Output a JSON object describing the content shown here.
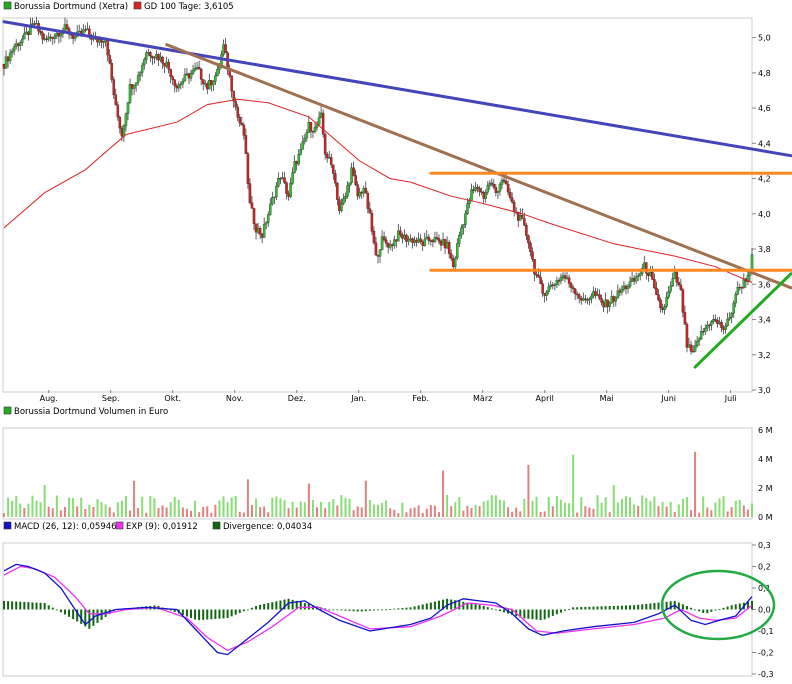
{
  "chart_data": [
    {
      "type": "candlestick",
      "panel": "price",
      "legend": [
        {
          "label": "Borussia Dortmund (Xetra)",
          "color": "#22aa22"
        },
        {
          "label": "GD 100 Tage: 3,6105",
          "color": "#dd2222"
        }
      ],
      "month_labels": [
        "Aug.",
        "Sep.",
        "Okt.",
        "Nov.",
        "Dez.",
        "Jan.",
        "Feb.",
        "März",
        "April",
        "Mai",
        "Juni",
        "Juli"
      ],
      "ylim": [
        3.0,
        5.1
      ],
      "yticks": [
        {
          "v": 3.0,
          "t": "3,0"
        },
        {
          "v": 3.2,
          "t": "3,2"
        },
        {
          "v": 3.4,
          "t": "3,4"
        },
        {
          "v": 3.6,
          "t": "3,6"
        },
        {
          "v": 3.8,
          "t": "3,8"
        },
        {
          "v": 4.0,
          "t": "4,0"
        },
        {
          "v": 4.2,
          "t": "4,2"
        },
        {
          "v": 4.4,
          "t": "4,4"
        },
        {
          "v": 4.6,
          "t": "4,6"
        },
        {
          "v": 4.8,
          "t": "4,8"
        },
        {
          "v": 5.0,
          "t": "5,0"
        }
      ],
      "close_path": [
        [
          0,
          4.85
        ],
        [
          5,
          4.95
        ],
        [
          10,
          5.0
        ],
        [
          15,
          5.08
        ],
        [
          20,
          4.98
        ],
        [
          25,
          5.02
        ],
        [
          30,
          5.05
        ],
        [
          35,
          5.0
        ],
        [
          40,
          5.04
        ],
        [
          45,
          4.98
        ],
        [
          50,
          5.0
        ],
        [
          55,
          4.6
        ],
        [
          58,
          4.45
        ],
        [
          62,
          4.72
        ],
        [
          66,
          4.78
        ],
        [
          70,
          4.92
        ],
        [
          75,
          4.9
        ],
        [
          80,
          4.85
        ],
        [
          85,
          4.72
        ],
        [
          90,
          4.78
        ],
        [
          95,
          4.82
        ],
        [
          100,
          4.72
        ],
        [
          105,
          4.8
        ],
        [
          108,
          4.95
        ],
        [
          112,
          4.72
        ],
        [
          115,
          4.55
        ],
        [
          118,
          4.45
        ],
        [
          121,
          4.05
        ],
        [
          124,
          3.92
        ],
        [
          127,
          3.88
        ],
        [
          130,
          4.0
        ],
        [
          133,
          4.12
        ],
        [
          136,
          4.22
        ],
        [
          140,
          4.1
        ],
        [
          143,
          4.28
        ],
        [
          146,
          4.35
        ],
        [
          150,
          4.5
        ],
        [
          153,
          4.48
        ],
        [
          156,
          4.55
        ],
        [
          158,
          4.35
        ],
        [
          162,
          4.25
        ],
        [
          165,
          4.02
        ],
        [
          168,
          4.1
        ],
        [
          171,
          4.25
        ],
        [
          174,
          4.1
        ],
        [
          177,
          4.15
        ],
        [
          180,
          3.98
        ],
        [
          183,
          3.75
        ],
        [
          186,
          3.85
        ],
        [
          190,
          3.82
        ],
        [
          194,
          3.88
        ],
        [
          198,
          3.86
        ],
        [
          202,
          3.85
        ],
        [
          206,
          3.83
        ],
        [
          210,
          3.86
        ],
        [
          214,
          3.84
        ],
        [
          218,
          3.82
        ],
        [
          221,
          3.7
        ],
        [
          224,
          3.88
        ],
        [
          227,
          4.0
        ],
        [
          230,
          4.12
        ],
        [
          233,
          4.15
        ],
        [
          236,
          4.1
        ],
        [
          239,
          4.18
        ],
        [
          242,
          4.12
        ],
        [
          245,
          4.2
        ],
        [
          248,
          4.12
        ],
        [
          251,
          4.02
        ],
        [
          255,
          3.95
        ],
        [
          258,
          3.85
        ],
        [
          261,
          3.68
        ],
        [
          265,
          3.55
        ],
        [
          270,
          3.6
        ],
        [
          275,
          3.65
        ],
        [
          280,
          3.58
        ],
        [
          285,
          3.5
        ],
        [
          290,
          3.55
        ],
        [
          295,
          3.48
        ],
        [
          300,
          3.52
        ],
        [
          305,
          3.58
        ],
        [
          310,
          3.62
        ],
        [
          315,
          3.7
        ],
        [
          318,
          3.65
        ],
        [
          321,
          3.52
        ],
        [
          324,
          3.45
        ],
        [
          327,
          3.55
        ],
        [
          330,
          3.65
        ],
        [
          333,
          3.55
        ],
        [
          336,
          3.25
        ],
        [
          339,
          3.2
        ],
        [
          342,
          3.3
        ],
        [
          345,
          3.35
        ],
        [
          348,
          3.4
        ],
        [
          351,
          3.38
        ],
        [
          354,
          3.35
        ],
        [
          357,
          3.4
        ],
        [
          360,
          3.55
        ],
        [
          363,
          3.6
        ],
        [
          366,
          3.65
        ],
        [
          368,
          3.75
        ]
      ],
      "series": [
        {
          "name": "GD 100 Tage",
          "color": "#dd2222",
          "values": [
            [
              0,
              3.92
            ],
            [
              20,
              4.12
            ],
            [
              40,
              4.25
            ],
            [
              60,
              4.45
            ],
            [
              85,
              4.52
            ],
            [
              100,
              4.62
            ],
            [
              115,
              4.65
            ],
            [
              130,
              4.63
            ],
            [
              150,
              4.55
            ],
            [
              175,
              4.3
            ],
            [
              190,
              4.2
            ],
            [
              200,
              4.18
            ],
            [
              210,
              4.14
            ],
            [
              220,
              4.1
            ],
            [
              235,
              4.06
            ],
            [
              255,
              4.0
            ],
            [
              270,
              3.94
            ],
            [
              300,
              3.83
            ],
            [
              330,
              3.76
            ],
            [
              350,
              3.7
            ],
            [
              368,
              3.61
            ]
          ]
        }
      ],
      "trend_lines": [
        {
          "color": "#4444bb",
          "from": [
            0,
            5.09
          ],
          "to": [
            390,
            4.33
          ]
        },
        {
          "color": "#a07050",
          "from": [
            80,
            4.96
          ],
          "to": [
            390,
            3.58
          ]
        },
        {
          "color": "#ff8822",
          "from": [
            210,
            4.23
          ],
          "to": [
            390,
            4.23
          ]
        },
        {
          "color": "#ff8822",
          "from": [
            210,
            3.68
          ],
          "to": [
            390,
            3.68
          ]
        },
        {
          "color": "#22aa22",
          "from": [
            340,
            3.13
          ],
          "to": [
            390,
            3.66
          ]
        }
      ]
    },
    {
      "type": "bar",
      "panel": "volume",
      "legend": [
        {
          "label": "Borussia Dortmund Volumen in Euro",
          "color": "#22aa22"
        }
      ],
      "ylim": [
        0,
        6
      ],
      "yticks": [
        {
          "v": 0,
          "t": "0 M"
        },
        {
          "v": 2,
          "t": "2 M"
        },
        {
          "v": 4,
          "t": "4 M"
        },
        {
          "v": 6,
          "t": "6 M"
        }
      ],
      "spikes": [
        [
          20,
          2.2
        ],
        [
          33,
          3.1
        ],
        [
          45,
          2.4
        ],
        [
          64,
          2.5
        ],
        [
          95,
          3.2
        ],
        [
          120,
          2.6
        ],
        [
          150,
          2.3
        ],
        [
          178,
          2.5
        ],
        [
          213,
          5.8
        ],
        [
          216,
          3.2
        ],
        [
          258,
          3.6
        ],
        [
          280,
          4.3
        ],
        [
          300,
          2.2
        ],
        [
          340,
          4.5
        ],
        [
          345,
          2.4
        ]
      ],
      "base_level": 0.9
    },
    {
      "type": "line",
      "panel": "macd",
      "legend": [
        {
          "label": "MACD (26, 12): 0,05946",
          "color": "#1111cc"
        },
        {
          "label": "EXP (9): 0,01912",
          "color": "#ee33ee"
        },
        {
          "label": "Divergence: 0,04034",
          "color": "#116611"
        }
      ],
      "ylim": [
        -0.3,
        0.3
      ],
      "yticks": [
        {
          "v": 0.3,
          "t": "0,3"
        },
        {
          "v": 0.2,
          "t": "0,2"
        },
        {
          "v": 0.1,
          "t": "0,1"
        },
        {
          "v": 0.0,
          "t": "0,0"
        },
        {
          "v": -0.1,
          "t": "-0,1"
        },
        {
          "v": -0.2,
          "t": "-0,2"
        },
        {
          "v": -0.3,
          "t": "-0,3"
        }
      ],
      "series": [
        {
          "name": "MACD (26, 12)",
          "color": "#1111cc",
          "values": [
            [
              0,
              0.18
            ],
            [
              6,
              0.21
            ],
            [
              12,
              0.2
            ],
            [
              20,
              0.17
            ],
            [
              28,
              0.1
            ],
            [
              35,
              0.0
            ],
            [
              40,
              -0.07
            ],
            [
              45,
              -0.03
            ],
            [
              55,
              0.0
            ],
            [
              70,
              0.01
            ],
            [
              85,
              0.0
            ],
            [
              95,
              -0.1
            ],
            [
              105,
              -0.2
            ],
            [
              110,
              -0.21
            ],
            [
              118,
              -0.15
            ],
            [
              130,
              -0.06
            ],
            [
              140,
              0.03
            ],
            [
              148,
              0.04
            ],
            [
              155,
              0.0
            ],
            [
              165,
              -0.05
            ],
            [
              180,
              -0.1
            ],
            [
              200,
              -0.07
            ],
            [
              210,
              -0.04
            ],
            [
              218,
              0.02
            ],
            [
              226,
              0.05
            ],
            [
              234,
              0.04
            ],
            [
              242,
              0.03
            ],
            [
              250,
              -0.02
            ],
            [
              258,
              -0.09
            ],
            [
              265,
              -0.12
            ],
            [
              275,
              -0.1
            ],
            [
              290,
              -0.08
            ],
            [
              310,
              -0.06
            ],
            [
              322,
              -0.02
            ],
            [
              330,
              0.02
            ],
            [
              338,
              -0.05
            ],
            [
              345,
              -0.07
            ],
            [
              352,
              -0.05
            ],
            [
              360,
              -0.03
            ],
            [
              368,
              0.06
            ]
          ]
        },
        {
          "name": "EXP (9)",
          "color": "#ee33ee",
          "values": [
            [
              0,
              0.16
            ],
            [
              8,
              0.2
            ],
            [
              15,
              0.19
            ],
            [
              25,
              0.15
            ],
            [
              35,
              0.06
            ],
            [
              42,
              -0.02
            ],
            [
              50,
              -0.02
            ],
            [
              60,
              0.0
            ],
            [
              75,
              0.01
            ],
            [
              90,
              -0.04
            ],
            [
              100,
              -0.13
            ],
            [
              110,
              -0.19
            ],
            [
              120,
              -0.15
            ],
            [
              132,
              -0.08
            ],
            [
              145,
              0.01
            ],
            [
              155,
              0.01
            ],
            [
              165,
              -0.03
            ],
            [
              180,
              -0.09
            ],
            [
              200,
              -0.08
            ],
            [
              215,
              -0.03
            ],
            [
              228,
              0.03
            ],
            [
              240,
              0.02
            ],
            [
              250,
              0.0
            ],
            [
              262,
              -0.1
            ],
            [
              272,
              -0.11
            ],
            [
              290,
              -0.09
            ],
            [
              310,
              -0.07
            ],
            [
              325,
              -0.04
            ],
            [
              333,
              0.0
            ],
            [
              342,
              -0.04
            ],
            [
              350,
              -0.05
            ],
            [
              360,
              -0.04
            ],
            [
              368,
              0.02
            ]
          ]
        }
      ],
      "divergence_env": [
        [
          0,
          0.04
        ],
        [
          20,
          0.03
        ],
        [
          35,
          -0.05
        ],
        [
          42,
          -0.09
        ],
        [
          55,
          0.0
        ],
        [
          75,
          0.02
        ],
        [
          95,
          -0.05
        ],
        [
          110,
          -0.04
        ],
        [
          125,
          0.02
        ],
        [
          140,
          0.05
        ],
        [
          160,
          0.0
        ],
        [
          175,
          -0.01
        ],
        [
          200,
          0.01
        ],
        [
          218,
          0.05
        ],
        [
          235,
          0.02
        ],
        [
          255,
          -0.04
        ],
        [
          265,
          -0.05
        ],
        [
          280,
          0.01
        ],
        [
          310,
          0.02
        ],
        [
          330,
          0.04
        ],
        [
          345,
          -0.02
        ],
        [
          358,
          0.02
        ],
        [
          368,
          0.04
        ]
      ]
    }
  ]
}
